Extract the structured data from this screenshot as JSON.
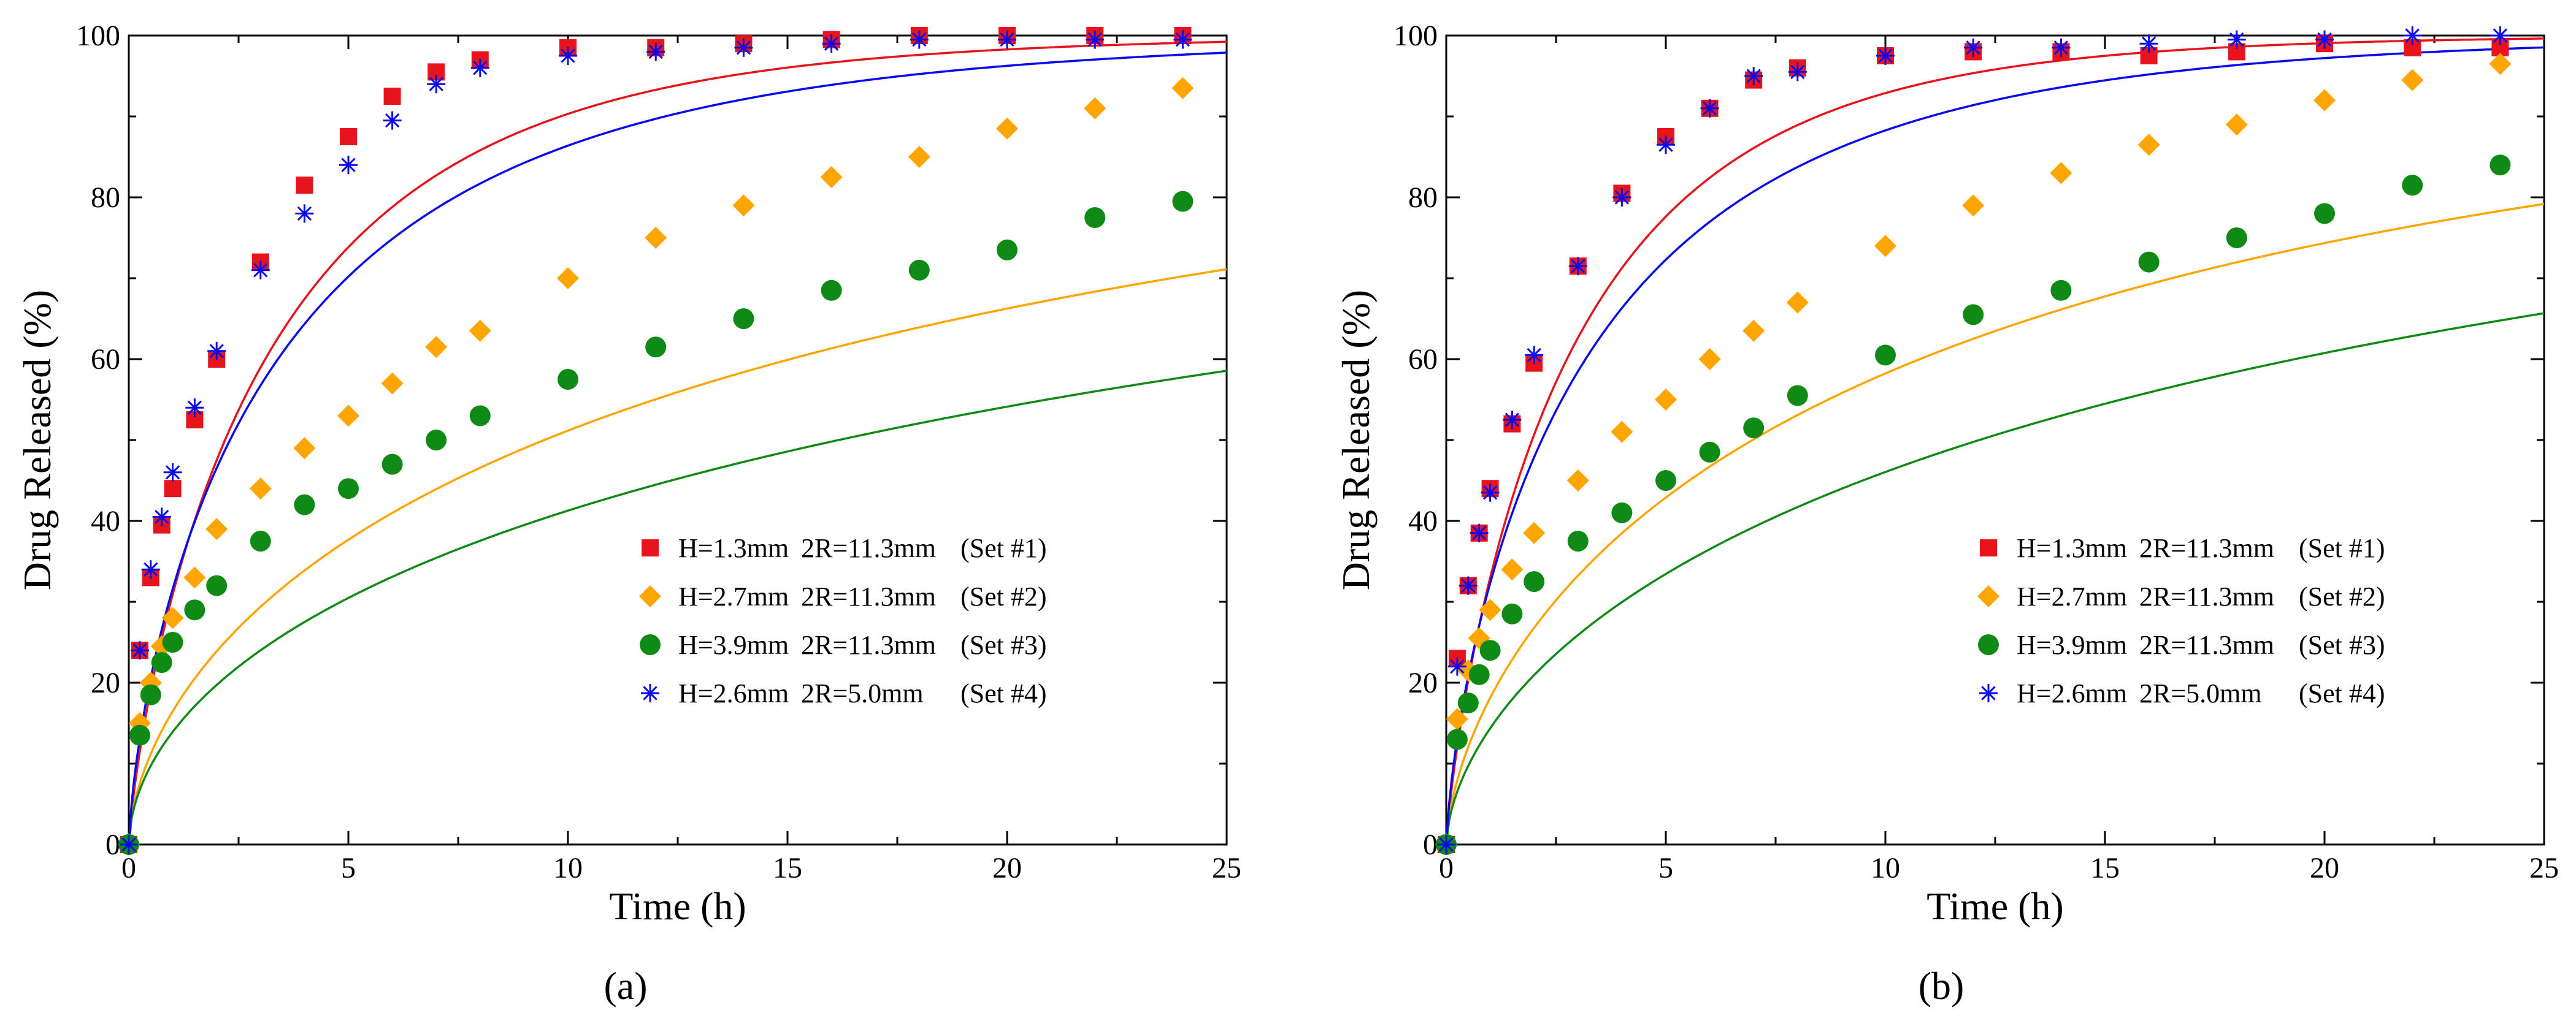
{
  "chart_data": [
    {
      "type": "scatter",
      "panel_label": "(a)",
      "xlabel": "Time (h)",
      "ylabel": "Drug Released (%)",
      "xlim": [
        0,
        25
      ],
      "ylim": [
        0,
        100
      ],
      "xticks": [
        0,
        5,
        10,
        15,
        20,
        25
      ],
      "yticks": [
        0,
        20,
        40,
        60,
        80,
        100
      ],
      "legend_position": "right",
      "series": [
        {
          "key": "set1",
          "name": "H=1.3mm   2R=11.3mm     (Set #1)",
          "label_main": "H=1.3mm",
          "label_2r": "2R=11.3mm",
          "label_set": "(Set #1)",
          "marker": "square",
          "color": "#e8141c",
          "x": [
            0,
            0.25,
            0.5,
            0.75,
            1,
            1.5,
            2,
            3,
            4,
            5,
            6,
            7,
            8,
            10,
            12,
            14,
            16,
            18,
            20,
            22,
            24
          ],
          "y": [
            0,
            24,
            33,
            39.5,
            44,
            52.5,
            60,
            72,
            81.5,
            87.5,
            92.5,
            95.5,
            97,
            98.5,
            98.5,
            99,
            99.5,
            100,
            100,
            100,
            100
          ],
          "fit_k": 0.37,
          "fit_n": 0.8
        },
        {
          "key": "set2",
          "name": "H=2.7mm   2R=11.3mm     (Set #2)",
          "label_main": "H=2.7mm",
          "label_2r": "2R=11.3mm",
          "label_set": "(Set #2)",
          "marker": "diamond",
          "color": "#ffa500",
          "x": [
            0,
            0.25,
            0.5,
            0.75,
            1,
            1.5,
            2,
            3,
            4,
            5,
            6,
            7,
            8,
            10,
            12,
            14,
            16,
            18,
            20,
            22,
            24
          ],
          "y": [
            0,
            15,
            20,
            24.5,
            28,
            33,
            39,
            44,
            49,
            53,
            57,
            61.5,
            63.5,
            70,
            75,
            79,
            82.5,
            85,
            88.5,
            91,
            93.5
          ],
          "fit_k": 0.18,
          "fit_n": 0.6
        },
        {
          "key": "set3",
          "name": "H=3.9mm   2R=11.3mm     (Set #3)",
          "label_main": "H=3.9mm",
          "label_2r": "2R=11.3mm",
          "label_set": "(Set #3)",
          "marker": "circle",
          "color": "#0f8a14",
          "x": [
            0,
            0.25,
            0.5,
            0.75,
            1,
            1.5,
            2,
            3,
            4,
            5,
            6,
            7,
            8,
            10,
            12,
            14,
            16,
            18,
            20,
            22,
            24
          ],
          "y": [
            0,
            13.5,
            18.5,
            22.5,
            25,
            29,
            32,
            37.5,
            42,
            44,
            47,
            50,
            53,
            57.5,
            61.5,
            65,
            68.5,
            71,
            73.5,
            77.5,
            79.5
          ],
          "fit_k": 0.15,
          "fit_n": 0.55
        },
        {
          "key": "set4",
          "name": "H=2.6mm   2R=5.0mm       (Set #4)",
          "label_main": "H=2.6mm",
          "label_2r": "2R=5.0mm",
          "label_set": "(Set #4)",
          "marker": "asterisk",
          "color": "#0a0af0",
          "x": [
            0,
            0.25,
            0.5,
            0.75,
            1,
            1.5,
            2,
            3,
            4,
            5,
            6,
            7,
            8,
            10,
            12,
            14,
            16,
            18,
            20,
            22,
            24
          ],
          "y": [
            0,
            24,
            34,
            40.5,
            46,
            54,
            61,
            71,
            78,
            84,
            89.5,
            94,
            96,
            97.5,
            98,
            98.5,
            99,
            99.5,
            99.5,
            99.5,
            99.5
          ],
          "fit_k": 0.38,
          "fit_n": 0.72
        }
      ]
    },
    {
      "type": "scatter",
      "panel_label": "(b)",
      "xlabel": "Time (h)",
      "ylabel": "Drug Released (%)",
      "xlim": [
        0,
        25
      ],
      "ylim": [
        0,
        100
      ],
      "xticks": [
        0,
        5,
        10,
        15,
        20,
        25
      ],
      "yticks": [
        0,
        20,
        40,
        60,
        80,
        100
      ],
      "legend_position": "right",
      "series": [
        {
          "key": "set1",
          "name": "H=1.3mm   2R=11.3mm     (Set #1)",
          "label_main": "H=1.3mm",
          "label_2r": "2R=11.3mm",
          "label_set": "(Set #1)",
          "marker": "square",
          "color": "#e8141c",
          "x": [
            0,
            0.25,
            0.5,
            0.75,
            1,
            1.5,
            2,
            3,
            4,
            5,
            6,
            7,
            8,
            10,
            12,
            14,
            16,
            18,
            20,
            22,
            24
          ],
          "y": [
            0,
            23,
            32,
            38.5,
            44,
            52,
            59.5,
            71.5,
            80.5,
            87.5,
            91,
            94.5,
            96,
            97.5,
            98,
            98,
            97.5,
            98,
            99,
            98.5,
            98.5
          ],
          "fit_k": 0.4,
          "fit_n": 0.82
        },
        {
          "key": "set2",
          "name": "H=2.7mm   2R=11.3mm     (Set #2)",
          "label_main": "H=2.7mm",
          "label_2r": "2R=11.3mm",
          "label_set": "(Set #2)",
          "marker": "diamond",
          "color": "#ffa500",
          "x": [
            0,
            0.25,
            0.5,
            0.75,
            1,
            1.5,
            2,
            3,
            4,
            5,
            6,
            7,
            8,
            10,
            12,
            14,
            16,
            18,
            20,
            22,
            24
          ],
          "y": [
            0,
            15.5,
            21.5,
            25.5,
            29,
            34,
            38.5,
            45,
            51,
            55,
            60,
            63.5,
            67,
            74,
            79,
            83,
            86.5,
            89,
            92,
            94.5,
            96.5
          ],
          "fit_k": 0.2,
          "fit_n": 0.64
        },
        {
          "key": "set3",
          "name": "H=3.9mm   2R=11.3mm     (Set #3)",
          "label_main": "H=3.9mm",
          "label_2r": "2R=11.3mm",
          "label_set": "(Set #3)",
          "marker": "circle",
          "color": "#0f8a14",
          "x": [
            0,
            0.25,
            0.5,
            0.75,
            1,
            1.5,
            2,
            3,
            4,
            5,
            6,
            7,
            8,
            10,
            12,
            14,
            16,
            18,
            20,
            22,
            24
          ],
          "y": [
            0,
            13,
            17.5,
            21,
            24,
            28.5,
            32.5,
            37.5,
            41,
            45,
            48.5,
            51.5,
            55.5,
            60.5,
            65.5,
            68.5,
            72,
            75,
            78,
            81.5,
            84
          ],
          "fit_k": 0.155,
          "fit_n": 0.6
        },
        {
          "key": "set4",
          "name": "H=2.6mm   2R=5.0mm       (Set #4)",
          "label_main": "H=2.6mm",
          "label_2r": "2R=5.0mm",
          "label_set": "(Set #4)",
          "marker": "asterisk",
          "color": "#0a0af0",
          "x": [
            0,
            0.25,
            0.5,
            0.75,
            1,
            1.5,
            2,
            3,
            4,
            5,
            6,
            7,
            8,
            10,
            12,
            14,
            16,
            18,
            20,
            22,
            24
          ],
          "y": [
            0,
            22,
            32,
            38.5,
            43.5,
            52.5,
            60.5,
            71.5,
            80,
            86.5,
            91,
            95,
            95.5,
            97.5,
            98.5,
            98.5,
            99,
            99.5,
            99.5,
            100,
            100
          ],
          "fit_k": 0.39,
          "fit_n": 0.74
        }
      ]
    }
  ]
}
